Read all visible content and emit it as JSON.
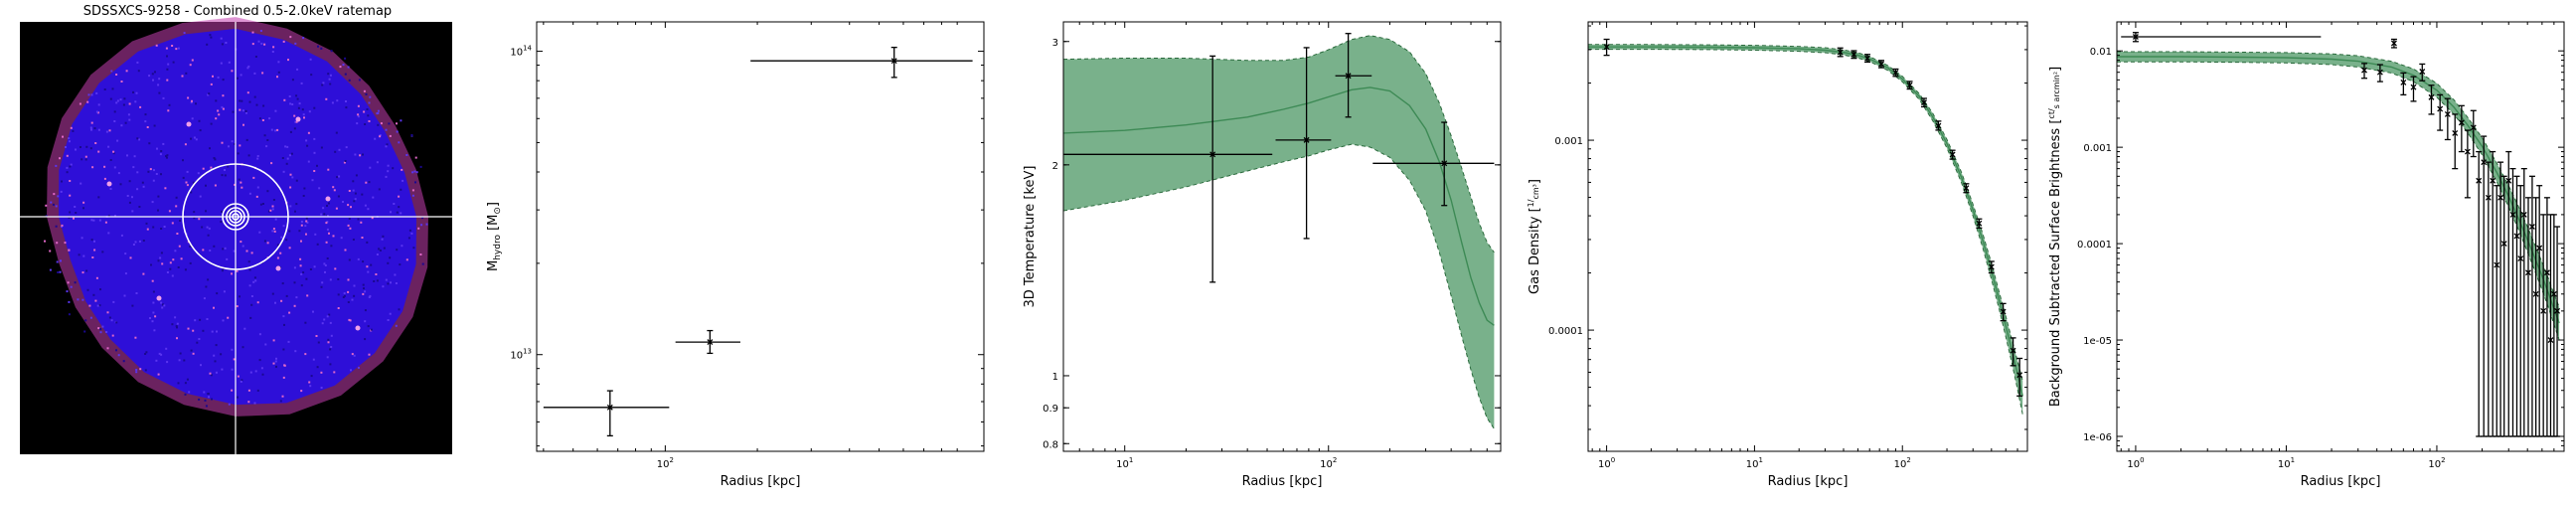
{
  "image_panel": {
    "title": "SDSSXCS-9258 - Combined 0.5-2.0keV ratemap"
  },
  "chart_data": [
    {
      "type": "scatter",
      "xlabel": "Radius [kpc]",
      "ylabel": "M_hydro [M_sun]",
      "ylabel_main": "M",
      "ylabel_sub": "hydro",
      "ylabel_unit": " [M",
      "ylabel_unit_sub": "⊙",
      "ylabel_end": "]",
      "xscale": "log",
      "yscale": "log",
      "xlim": [
        38,
        1100
      ],
      "ylim": [
        4800000000000.0,
        125000000000000.0
      ],
      "xticks": [
        {
          "v": 100,
          "b": "10",
          "e": "2"
        }
      ],
      "yticks": [
        {
          "v": 10000000000000.0,
          "b": "10",
          "e": "13"
        },
        {
          "v": 100000000000000.0,
          "b": "10",
          "e": "14"
        }
      ],
      "points": [
        {
          "x": 66,
          "y": 6700000000000.0,
          "xlo": 40,
          "xhi": 103,
          "ylo": 5400000000000.0,
          "yhi": 7600000000000.0
        },
        {
          "x": 140,
          "y": 11000000000000.0,
          "xlo": 108,
          "xhi": 176,
          "ylo": 10100000000000.0,
          "yhi": 12000000000000.0
        },
        {
          "x": 560,
          "y": 93000000000000.0,
          "xlo": 190,
          "xhi": 1010,
          "ylo": 82000000000000.0,
          "yhi": 103000000000000.0
        }
      ]
    },
    {
      "type": "line",
      "xlabel": "Radius [kpc]",
      "ylabel": "3D Temperature [keV]",
      "xscale": "log",
      "yscale": "log",
      "xlim": [
        5,
        700
      ],
      "ylim": [
        0.78,
        3.2
      ],
      "xticks": [
        {
          "v": 10,
          "b": "10",
          "e": "1"
        },
        {
          "v": 100,
          "b": "10",
          "e": "2"
        }
      ],
      "yticks": [
        {
          "v": 0.8,
          "t": "0.8"
        },
        {
          "v": 0.9,
          "t": "0.9"
        },
        {
          "v": 1,
          "t": "1"
        },
        {
          "v": 2,
          "t": "2"
        },
        {
          "v": 3,
          "t": "3"
        }
      ],
      "model": {
        "r": [
          5,
          10,
          20,
          40,
          60,
          80,
          100,
          130,
          160,
          200,
          250,
          300,
          350,
          400,
          450,
          500,
          550,
          600,
          650
        ],
        "median": [
          2.22,
          2.24,
          2.28,
          2.34,
          2.4,
          2.45,
          2.5,
          2.56,
          2.58,
          2.55,
          2.43,
          2.25,
          2.02,
          1.78,
          1.55,
          1.38,
          1.27,
          1.2,
          1.18
        ],
        "lo": [
          1.72,
          1.78,
          1.86,
          1.96,
          2.02,
          2.06,
          2.1,
          2.14,
          2.12,
          2.05,
          1.9,
          1.72,
          1.5,
          1.3,
          1.14,
          1.02,
          0.93,
          0.87,
          0.84
        ],
        "hi": [
          2.83,
          2.84,
          2.84,
          2.82,
          2.82,
          2.85,
          2.92,
          3.02,
          3.06,
          3.02,
          2.9,
          2.7,
          2.45,
          2.2,
          1.98,
          1.8,
          1.65,
          1.55,
          1.5
        ]
      },
      "points": [
        {
          "x": 27,
          "y": 2.07,
          "xlo": 5,
          "xhi": 53,
          "ylo": 1.36,
          "yhi": 2.86
        },
        {
          "x": 78,
          "y": 2.17,
          "xlo": 55,
          "xhi": 103,
          "ylo": 1.57,
          "yhi": 2.94
        },
        {
          "x": 125,
          "y": 2.68,
          "xlo": 108,
          "xhi": 163,
          "ylo": 2.34,
          "yhi": 3.08
        },
        {
          "x": 370,
          "y": 2.01,
          "xlo": 165,
          "xhi": 650,
          "ylo": 1.75,
          "yhi": 2.3
        }
      ]
    },
    {
      "type": "line",
      "xlabel": "Radius [kpc]",
      "ylabel": "Gas Density",
      "ylabel_unit_num": "1",
      "ylabel_unit_den": "cm³",
      "xscale": "log",
      "yscale": "log",
      "xlim": [
        0.75,
        700
      ],
      "ylim": [
        2.3e-05,
        0.0042
      ],
      "xticks": [
        {
          "v": 1,
          "b": "10",
          "e": "0"
        },
        {
          "v": 10,
          "b": "10",
          "e": "1"
        },
        {
          "v": 100,
          "b": "10",
          "e": "2"
        }
      ],
      "yticks": [
        {
          "v": 0.0001,
          "t": "0.0001"
        },
        {
          "v": 0.001,
          "t": "0.001"
        }
      ],
      "model": {
        "r": [
          0.75,
          1,
          2,
          5,
          10,
          20,
          30,
          40,
          50,
          60,
          80,
          100,
          130,
          160,
          200,
          250,
          300,
          350,
          400,
          450,
          500,
          550,
          600,
          650
        ],
        "median": [
          0.0031,
          0.0031,
          0.0031,
          0.00309,
          0.00307,
          0.00303,
          0.00298,
          0.0029,
          0.0028,
          0.00268,
          0.0024,
          0.0021,
          0.0017,
          0.00133,
          0.00096,
          0.00064,
          0.00043,
          0.000295,
          0.000205,
          0.000145,
          0.000105,
          7.8e-05,
          5.9e-05,
          4.5e-05
        ],
        "lo": [
          0.00301,
          0.00301,
          0.00301,
          0.003,
          0.00298,
          0.00294,
          0.00289,
          0.00281,
          0.00271,
          0.0026,
          0.00233,
          0.00203,
          0.00164,
          0.00127,
          0.00091,
          0.0006,
          0.0004,
          0.00027,
          0.000185,
          0.00013,
          9.2e-05,
          6.7e-05,
          4.9e-05,
          3.6e-05
        ],
        "hi": [
          0.00319,
          0.00319,
          0.00319,
          0.00318,
          0.00316,
          0.00312,
          0.00307,
          0.00299,
          0.00289,
          0.00276,
          0.00247,
          0.00217,
          0.00176,
          0.00139,
          0.00101,
          0.00068,
          0.00046,
          0.00032,
          0.000225,
          0.00016,
          0.000118,
          8.9e-05,
          6.9e-05,
          5.4e-05
        ]
      },
      "points": [
        {
          "x": 1,
          "y": 0.0031,
          "ylo": 0.0028,
          "yhi": 0.0034
        },
        {
          "x": 38,
          "y": 0.00291,
          "ylo": 0.00276,
          "yhi": 0.00306
        },
        {
          "x": 47,
          "y": 0.00283,
          "ylo": 0.0027,
          "yhi": 0.00296
        },
        {
          "x": 58,
          "y": 0.0027,
          "ylo": 0.00258,
          "yhi": 0.00283
        },
        {
          "x": 72,
          "y": 0.00252,
          "ylo": 0.00241,
          "yhi": 0.00263
        },
        {
          "x": 90,
          "y": 0.00227,
          "ylo": 0.00217,
          "yhi": 0.00237
        },
        {
          "x": 112,
          "y": 0.00195,
          "ylo": 0.00186,
          "yhi": 0.00204
        },
        {
          "x": 140,
          "y": 0.00158,
          "ylo": 0.0015,
          "yhi": 0.00166
        },
        {
          "x": 175,
          "y": 0.00119,
          "ylo": 0.00113,
          "yhi": 0.00126
        },
        {
          "x": 218,
          "y": 0.00084,
          "ylo": 0.000795,
          "yhi": 0.000885
        },
        {
          "x": 270,
          "y": 0.00056,
          "ylo": 0.00053,
          "yhi": 0.00059
        },
        {
          "x": 330,
          "y": 0.000365,
          "ylo": 0.000345,
          "yhi": 0.000385
        },
        {
          "x": 400,
          "y": 0.000215,
          "ylo": 0.0002,
          "yhi": 0.00023
        },
        {
          "x": 480,
          "y": 0.000125,
          "ylo": 0.000112,
          "yhi": 0.000138
        },
        {
          "x": 560,
          "y": 7.8e-05,
          "ylo": 6.5e-05,
          "yhi": 9.1e-05
        },
        {
          "x": 620,
          "y": 5.8e-05,
          "ylo": 4.5e-05,
          "yhi": 7.1e-05
        }
      ]
    },
    {
      "type": "line",
      "xlabel": "Radius [kpc]",
      "ylabel": "Background Subtracted Surface Brightness",
      "ylabel_unit_num": "ct",
      "ylabel_unit_den": "s arcmin²",
      "xscale": "log",
      "yscale": "log",
      "xlim": [
        0.75,
        700
      ],
      "ylim": [
        7e-07,
        0.02
      ],
      "xticks": [
        {
          "v": 1,
          "b": "10",
          "e": "0"
        },
        {
          "v": 10,
          "b": "10",
          "e": "1"
        },
        {
          "v": 100,
          "b": "10",
          "e": "2"
        }
      ],
      "yticks": [
        {
          "v": 1e-06,
          "t": "1e-06"
        },
        {
          "v": 1e-05,
          "t": "1e-05"
        },
        {
          "v": 0.0001,
          "t": "0.0001"
        },
        {
          "v": 0.001,
          "t": "0.001"
        },
        {
          "v": 0.01,
          "t": "0.01"
        }
      ],
      "model": {
        "r": [
          0.75,
          1,
          2,
          5,
          10,
          20,
          30,
          50,
          70,
          100,
          130,
          160,
          200,
          250,
          300,
          350,
          400,
          450,
          500,
          550,
          600,
          650
        ],
        "median": [
          0.0087,
          0.0087,
          0.0087,
          0.0086,
          0.0085,
          0.0082,
          0.0078,
          0.0068,
          0.0056,
          0.0039,
          0.0026,
          0.0017,
          0.00102,
          0.00055,
          0.00031,
          0.00018,
          0.00011,
          7e-05,
          4.6e-05,
          3.1e-05,
          2.1e-05,
          1.5e-05
        ],
        "lo": [
          0.0077,
          0.0077,
          0.0077,
          0.0076,
          0.0075,
          0.0072,
          0.0068,
          0.0059,
          0.0048,
          0.0033,
          0.0022,
          0.00142,
          0.00083,
          0.00044,
          0.00024,
          0.000138,
          8.2e-05,
          5.1e-05,
          3.3e-05,
          2.2e-05,
          1.45e-05,
          1e-05
        ],
        "hi": [
          0.0098,
          0.0098,
          0.0098,
          0.0097,
          0.0096,
          0.0093,
          0.0089,
          0.0078,
          0.0065,
          0.0046,
          0.0031,
          0.00205,
          0.00125,
          0.00069,
          0.0004,
          0.00024,
          0.00015,
          9.6e-05,
          6.4e-05,
          4.4e-05,
          3e-05,
          2.2e-05
        ]
      },
      "points": [
        {
          "x": 1,
          "y": 0.014,
          "xlo": 0.8,
          "xhi": 17,
          "ylo": 0.0125,
          "yhi": 0.0155
        },
        {
          "x": 33,
          "y": 0.0063,
          "ylo": 0.0052,
          "yhi": 0.0074
        },
        {
          "x": 42,
          "y": 0.006,
          "ylo": 0.0048,
          "yhi": 0.0072
        },
        {
          "x": 52,
          "y": 0.012,
          "ylo": 0.0108,
          "yhi": 0.0132
        },
        {
          "x": 60,
          "y": 0.0047,
          "ylo": 0.0035,
          "yhi": 0.0059
        },
        {
          "x": 70,
          "y": 0.0042,
          "ylo": 0.003,
          "yhi": 0.0054
        },
        {
          "x": 80,
          "y": 0.0061,
          "ylo": 0.0049,
          "yhi": 0.0073
        },
        {
          "x": 92,
          "y": 0.0033,
          "ylo": 0.0022,
          "yhi": 0.0044
        },
        {
          "x": 105,
          "y": 0.0025,
          "ylo": 0.0015,
          "yhi": 0.0035
        },
        {
          "x": 118,
          "y": 0.0022,
          "ylo": 0.0012,
          "yhi": 0.0032
        },
        {
          "x": 132,
          "y": 0.0014,
          "ylo": 0.0006,
          "yhi": 0.0022
        },
        {
          "x": 146,
          "y": 0.0018,
          "ylo": 0.0009,
          "yhi": 0.0027
        },
        {
          "x": 160,
          "y": 0.0009,
          "ylo": 0.0003,
          "yhi": 0.0015
        },
        {
          "x": 175,
          "y": 0.0016,
          "ylo": 0.0008,
          "yhi": 0.0024
        },
        {
          "x": 190,
          "y": 0.00045,
          "ylo": 1e-06,
          "yhi": 0.0009
        },
        {
          "x": 205,
          "y": 0.0007,
          "ylo": 1e-06,
          "yhi": 0.0013
        },
        {
          "x": 220,
          "y": 0.0003,
          "ylo": 1e-06,
          "yhi": 0.0007
        },
        {
          "x": 235,
          "y": 0.00045,
          "ylo": 1e-06,
          "yhi": 0.0009
        },
        {
          "x": 250,
          "y": 6e-05,
          "ylo": 1e-06,
          "yhi": 0.0004
        },
        {
          "x": 265,
          "y": 0.0003,
          "ylo": 1e-06,
          "yhi": 0.0007
        },
        {
          "x": 280,
          "y": 0.0001,
          "ylo": 1e-06,
          "yhi": 0.0005
        },
        {
          "x": 300,
          "y": 0.00045,
          "ylo": 1e-06,
          "yhi": 0.0009
        },
        {
          "x": 320,
          "y": 0.0002,
          "ylo": 1e-06,
          "yhi": 0.0006
        },
        {
          "x": 340,
          "y": 0.00012,
          "ylo": 1e-06,
          "yhi": 0.0005
        },
        {
          "x": 360,
          "y": 7e-05,
          "ylo": 1e-06,
          "yhi": 0.0004
        },
        {
          "x": 380,
          "y": 0.0002,
          "ylo": 1e-06,
          "yhi": 0.0006
        },
        {
          "x": 405,
          "y": 5e-05,
          "ylo": 1e-06,
          "yhi": 0.0003
        },
        {
          "x": 430,
          "y": 0.00015,
          "ylo": 1e-06,
          "yhi": 0.0005
        },
        {
          "x": 455,
          "y": 3e-05,
          "ylo": 1e-06,
          "yhi": 0.0003
        },
        {
          "x": 480,
          "y": 9e-05,
          "ylo": 1e-06,
          "yhi": 0.0004
        },
        {
          "x": 510,
          "y": 2e-05,
          "ylo": 1e-06,
          "yhi": 0.0002
        },
        {
          "x": 540,
          "y": 5e-05,
          "ylo": 1e-06,
          "yhi": 0.0003
        },
        {
          "x": 570,
          "y": 1e-05,
          "ylo": 1e-06,
          "yhi": 0.0002
        },
        {
          "x": 600,
          "y": 3e-05,
          "ylo": 1e-06,
          "yhi": 0.0002
        },
        {
          "x": 630,
          "y": 2e-05,
          "ylo": 1e-06,
          "yhi": 0.00015
        }
      ]
    }
  ],
  "colors": {
    "band_fill": "#6aa87e",
    "band_edge": "#2a6a3c",
    "model_line": "#3d8a55",
    "error_bar": "#000000",
    "image_bg": "#000000",
    "image_blob": "#2e0fd8",
    "image_halo": "#c23eae",
    "overlay": "#ffffff"
  }
}
